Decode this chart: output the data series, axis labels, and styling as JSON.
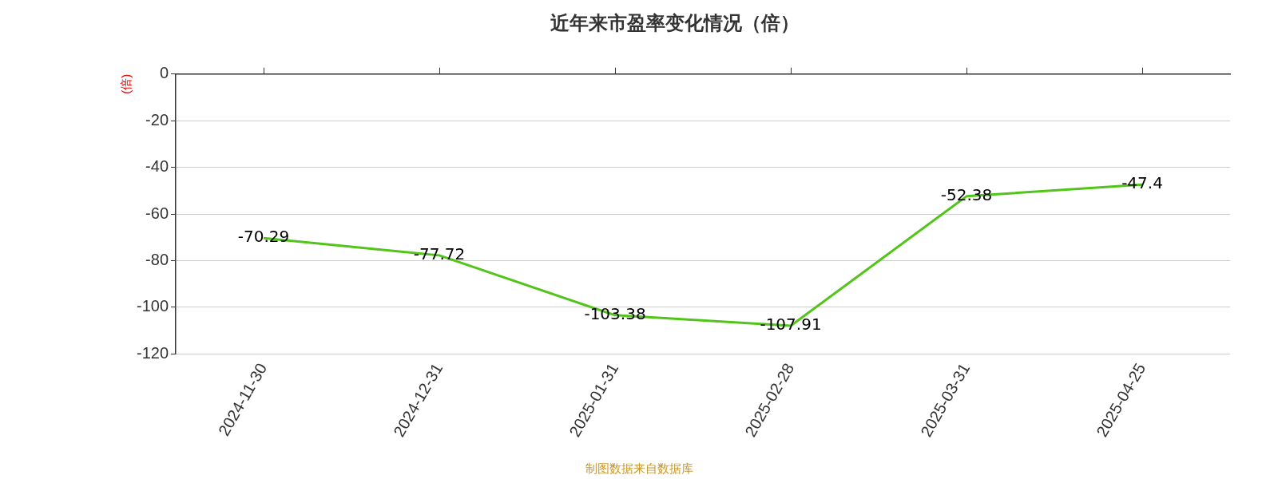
{
  "chart_data": {
    "type": "line",
    "title": "近年来市盈率变化情况（倍）",
    "ylabel": "(倍)",
    "categories": [
      "2024-11-30",
      "2024-12-31",
      "2025-01-31",
      "2025-02-28",
      "2025-03-31",
      "2025-04-25"
    ],
    "series": [
      {
        "color": "#52c41a",
        "values": [
          -70.29,
          -77.72,
          -103.38,
          -107.91,
          -52.38,
          -47.4
        ]
      }
    ],
    "ylim": [
      -120,
      0
    ],
    "yticks": [
      0,
      -20,
      -40,
      -60,
      -80,
      -100,
      -120
    ],
    "grid": "y",
    "data_labels": true,
    "legend": false,
    "marker": "none",
    "line_style": "solid",
    "annotations": [
      "制图数据来自数据库"
    ]
  }
}
